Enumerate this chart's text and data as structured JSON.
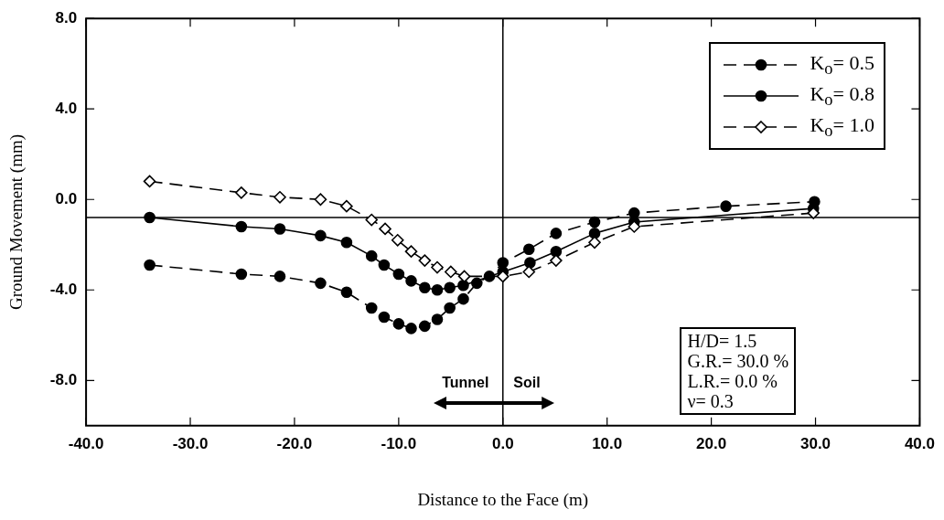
{
  "chart_data": {
    "type": "line",
    "xlabel": "Distance to the Face (m)",
    "ylabel": "Ground Movement (mm)",
    "xlim": [
      -40,
      40
    ],
    "xticks": [
      {
        "value": -40,
        "label": "-40.0"
      },
      {
        "value": -30,
        "label": "-30.0"
      },
      {
        "value": -20,
        "label": "-20.0"
      },
      {
        "value": -10,
        "label": "-10.0"
      },
      {
        "value": 0,
        "label": "0.0"
      },
      {
        "value": 10,
        "label": "10.0"
      },
      {
        "value": 20,
        "label": "20.0"
      },
      {
        "value": 30,
        "label": "30.0"
      },
      {
        "value": 40,
        "label": "40.0"
      }
    ],
    "ylim": [
      -10,
      8
    ],
    "yticks": [
      {
        "value": -8,
        "label": "-8.0"
      },
      {
        "value": -4,
        "label": "-4.0"
      },
      {
        "value": 0,
        "label": "0.0"
      },
      {
        "value": 4,
        "label": "4.0"
      },
      {
        "value": 8,
        "label": "8.0"
      }
    ],
    "grid": false,
    "legend": "top right",
    "series": [
      {
        "name": "K$_{o}$= 0.5",
        "color": "#000000",
        "marker": "circle",
        "line_style": "dashed",
        "x": [
          -33.9,
          -25.1,
          -21.4,
          -17.5,
          -15.0,
          -12.6,
          -11.4,
          -10.0,
          -8.8,
          -7.5,
          -6.3,
          -5.1,
          -3.8,
          -2.5,
          -1.3,
          0,
          2.5,
          5.1,
          8.8,
          12.6,
          21.4,
          29.9
        ],
        "values": [
          -2.9,
          -3.3,
          -3.4,
          -3.7,
          -4.1,
          -4.8,
          -5.2,
          -5.5,
          -5.7,
          -5.6,
          -5.3,
          -4.8,
          -4.4,
          -3.7,
          -3.4,
          -2.8,
          -2.2,
          -1.5,
          -1.0,
          -0.6,
          -0.3,
          -0.1
        ]
      },
      {
        "name": "K$_{o}$= 0.8",
        "color": "#000000",
        "marker": "circle",
        "line_style": "solid",
        "x": [
          -33.9,
          -25.1,
          -21.4,
          -17.5,
          -15.0,
          -12.6,
          -11.4,
          -10.0,
          -8.8,
          -7.5,
          -6.3,
          -5.1,
          -3.8,
          0,
          2.6,
          5.1,
          8.8,
          12.6,
          29.8
        ],
        "values": [
          -0.8,
          -1.2,
          -1.3,
          -1.6,
          -1.9,
          -2.5,
          -2.9,
          -3.3,
          -3.6,
          -3.9,
          -4.0,
          -3.9,
          -3.8,
          -3.2,
          -2.8,
          -2.3,
          -1.5,
          -1.0,
          -0.4
        ]
      },
      {
        "name": "K$_{o}$= 1.0",
        "color": "#000000",
        "marker": "diamond",
        "line_style": "dashed",
        "x": [
          -33.9,
          -25.1,
          -21.4,
          -17.5,
          -15.0,
          -12.6,
          -11.3,
          -10.1,
          -8.8,
          -7.5,
          -6.3,
          -5.0,
          -3.7,
          0,
          2.5,
          5.1,
          8.8,
          12.6,
          29.8
        ],
        "values": [
          0.8,
          0.3,
          0.1,
          0.0,
          -0.3,
          -0.9,
          -1.3,
          -1.8,
          -2.3,
          -2.7,
          -3.0,
          -3.2,
          -3.4,
          -3.4,
          -3.2,
          -2.7,
          -1.9,
          -1.2,
          -0.6
        ]
      }
    ],
    "ref_lines": [
      {
        "axis": "y",
        "value": -0.8
      },
      {
        "axis": "x",
        "value": 0
      }
    ],
    "annotations": [
      "Tunnel",
      "Soil",
      "H/D= 1.5",
      "G.R.= 30.0 %",
      "L.R.= 0.0 %",
      "ν= 0.3"
    ]
  }
}
